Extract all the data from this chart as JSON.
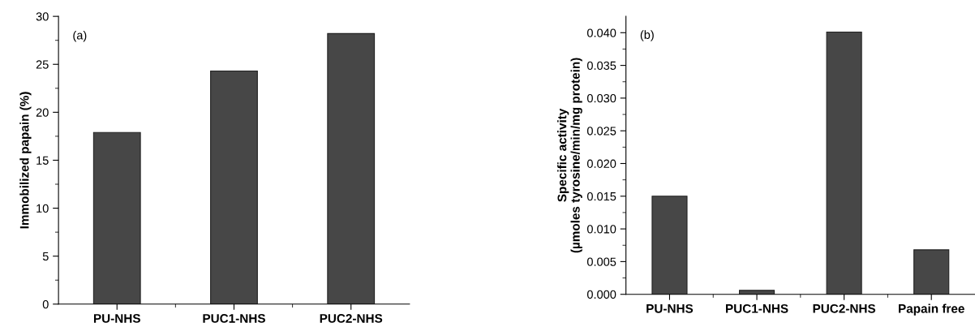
{
  "chart_data": [
    {
      "type": "bar",
      "ylabel": "Immobilized papain (%)",
      "annotations": [
        "(a)"
      ],
      "categories": [
        "PU-NHS",
        "PUC1-NHS",
        "PUC2-NHS"
      ],
      "values": [
        17.9,
        24.3,
        28.2
      ],
      "color": "#474747",
      "ylim": [
        0,
        30
      ],
      "yticks": [
        0,
        5,
        10,
        15,
        20,
        25,
        30
      ],
      "grid": false,
      "legend": false
    },
    {
      "type": "bar",
      "ylabel": "Specific activity\n(µmoles tyrosine/min/mg protein)",
      "annotations": [
        "(b)"
      ],
      "categories": [
        "PU-NHS",
        "PUC1-NHS",
        "PUC2-NHS",
        "Papain free"
      ],
      "values": [
        0.015,
        0.0006,
        0.0401,
        0.0068
      ],
      "color": "#474747",
      "ylim": [
        0,
        0.0425
      ],
      "yticks": [
        {
          "value": 0,
          "label": "0.000"
        },
        {
          "value": 0.005,
          "label": "0.005"
        },
        {
          "value": 0.01,
          "label": "0.010"
        },
        {
          "value": 0.015,
          "label": "0.015"
        },
        {
          "value": 0.02,
          "label": "0.020"
        },
        {
          "value": 0.025,
          "label": "0.025"
        },
        {
          "value": 0.03,
          "label": "0.030"
        },
        {
          "value": 0.035,
          "label": "0.035"
        },
        {
          "value": 0.04,
          "label": "0.040"
        }
      ],
      "grid": false,
      "legend": false
    }
  ]
}
